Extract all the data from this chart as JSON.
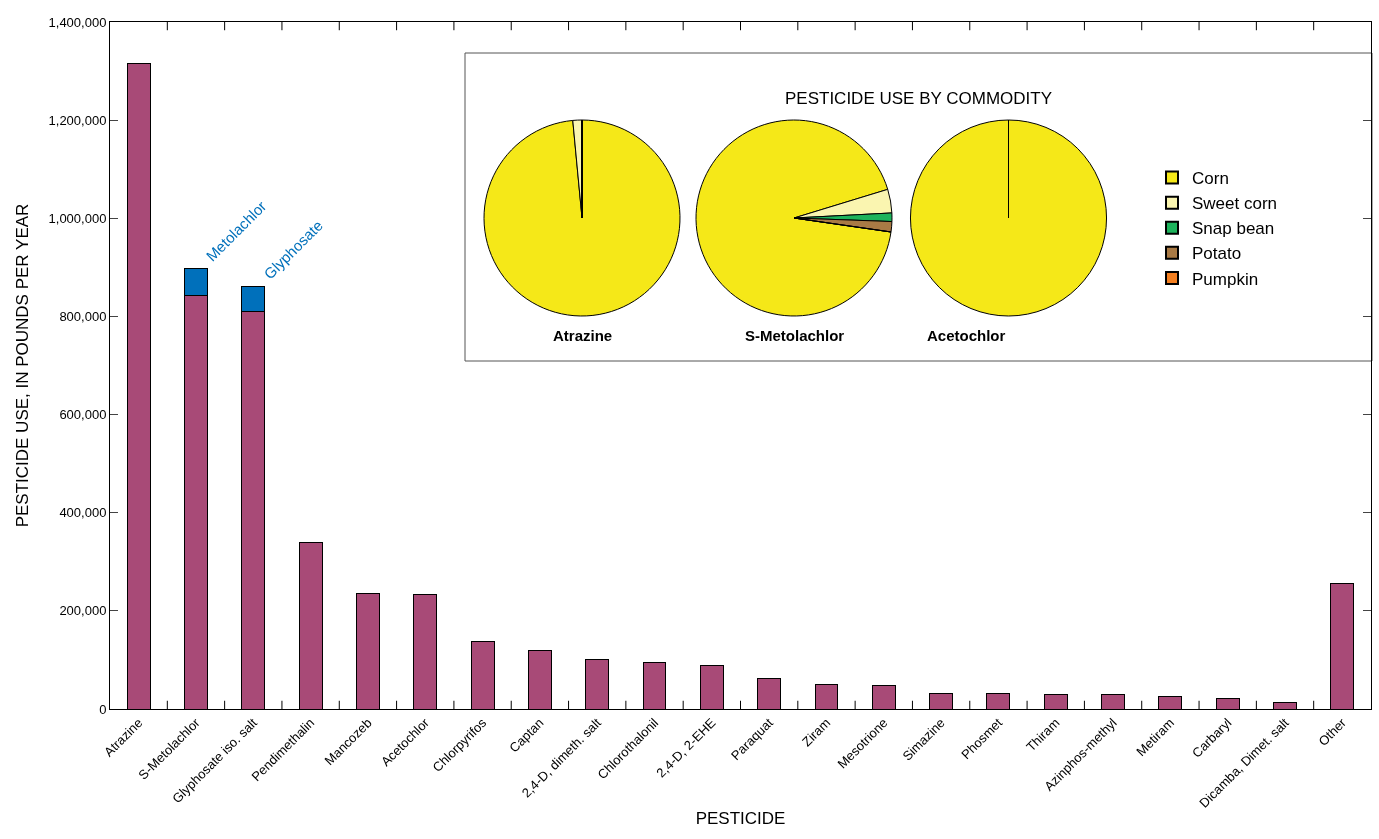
{
  "chart_data": [
    {
      "type": "bar",
      "stacked": true,
      "xlabel": "PESTICIDE",
      "ylabel": "PESTICIDE USE, IN POUNDS PER YEAR",
      "categories": [
        "Atrazine",
        "S-Metolachlor",
        "Glyphosate iso. salt",
        "Pendimethalin",
        "Mancozeb",
        "Acetochlor",
        "Chlorpyrifos",
        "Captan",
        "2,4-D, dimeth. salt",
        "Chlorothalonil",
        "2,4-D, 2-EHE",
        "Paraquat",
        "Ziram",
        "Mesotrione",
        "Simazine",
        "Phosmet",
        "Thiram",
        "Azinphos-methyl",
        "Metiram",
        "Carbaryl",
        "Dicamba, Dimet. salt",
        "Other"
      ],
      "series": [
        {
          "color": "#a84a77",
          "values": [
            1315000,
            843000,
            810000,
            340000,
            235000,
            233000,
            137000,
            120000,
            100000,
            95000,
            89000,
            62000,
            50000,
            48000,
            32000,
            31000,
            30000,
            29000,
            26000,
            22000,
            13000,
            255000
          ]
        },
        {
          "color": "#0070bb",
          "values": [
            null,
            54000,
            50000,
            null,
            null,
            null,
            null,
            null,
            null,
            null,
            null,
            null,
            null,
            null,
            null,
            null,
            null,
            null,
            null,
            null,
            null,
            null
          ]
        }
      ],
      "ylim": [
        0,
        1400000
      ],
      "yticks": [
        {
          "value": 0,
          "label": "0"
        },
        {
          "value": 200000,
          "label": "200,000"
        },
        {
          "value": 400000,
          "label": "400,000"
        },
        {
          "value": 600000,
          "label": "600,000"
        },
        {
          "value": 800000,
          "label": "800,000"
        },
        {
          "value": 1000000,
          "label": "1,000,000"
        },
        {
          "value": 1200000,
          "label": "1,200,000"
        },
        {
          "value": 1400000,
          "label": "1,400,000"
        }
      ],
      "annotations": [
        {
          "text": "Metolachlor",
          "x": "S-Metolachlor",
          "y": 897000
        },
        {
          "text": "Glyphosate",
          "x": "Glyphosate iso. salt",
          "y": 860000
        }
      ],
      "grid": false,
      "legend": false
    },
    {
      "type": "pie",
      "title": "PESTICIDE USE BY COMMODITY",
      "categories": [
        "Corn",
        "Sweet corn",
        "Snap bean",
        "Potato",
        "Pumpkin"
      ],
      "colors": [
        "#f5e818",
        "#faf5b0",
        "#1db35c",
        "#a97a45",
        "#f47f20"
      ],
      "legend": "right",
      "series": [
        {
          "name": "Atrazine",
          "values": [
            98.5,
            1.5,
            0,
            0,
            0
          ]
        },
        {
          "name": "S-Metolachlor",
          "values": [
            93.0,
            3.9,
            1.4,
            1.7,
            0
          ]
        },
        {
          "name": "Acetochlor",
          "values": [
            100,
            0,
            0,
            0,
            0
          ]
        }
      ]
    }
  ]
}
